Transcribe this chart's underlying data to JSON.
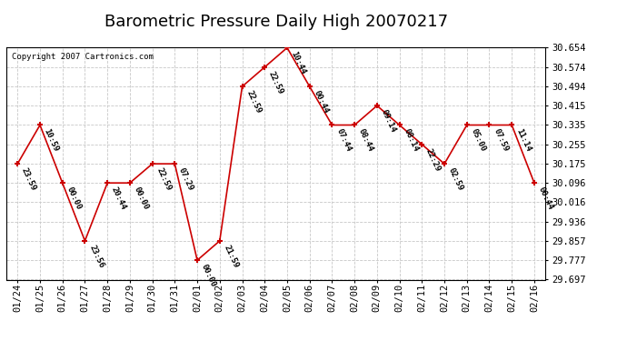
{
  "title": "Barometric Pressure Daily High 20070217",
  "copyright": "Copyright 2007 Cartronics.com",
  "background_color": "#ffffff",
  "line_color": "#cc0000",
  "marker_color": "#cc0000",
  "grid_color": "#c8c8c8",
  "x_labels": [
    "01/24",
    "01/25",
    "01/26",
    "01/27",
    "01/28",
    "01/29",
    "01/30",
    "01/31",
    "02/01",
    "02/02",
    "02/03",
    "02/04",
    "02/05",
    "02/06",
    "02/07",
    "02/08",
    "02/09",
    "02/10",
    "02/11",
    "02/12",
    "02/13",
    "02/14",
    "02/15",
    "02/16"
  ],
  "y_values": [
    30.175,
    30.335,
    30.096,
    29.857,
    30.096,
    30.096,
    30.175,
    30.175,
    29.777,
    29.857,
    30.494,
    30.574,
    30.654,
    30.494,
    30.335,
    30.335,
    30.415,
    30.335,
    30.255,
    30.175,
    30.335,
    30.335,
    30.335,
    30.096
  ],
  "annotations": [
    "23:59",
    "10:59",
    "00:00",
    "23:56",
    "20:44",
    "00:00",
    "22:59",
    "07:29",
    "00:00",
    "21:59",
    "22:59",
    "22:59",
    "10:44",
    "00:44",
    "07:44",
    "08:44",
    "09:14",
    "08:14",
    "22:29",
    "02:59",
    "05:00",
    "07:59",
    "11:14",
    "00:44"
  ],
  "ylim_min": 29.697,
  "ylim_max": 30.654,
  "yticks": [
    29.697,
    29.777,
    29.857,
    29.936,
    30.016,
    30.096,
    30.175,
    30.255,
    30.335,
    30.415,
    30.494,
    30.574,
    30.654
  ],
  "title_fontsize": 13,
  "tick_fontsize": 7.5,
  "annotation_fontsize": 6.5
}
